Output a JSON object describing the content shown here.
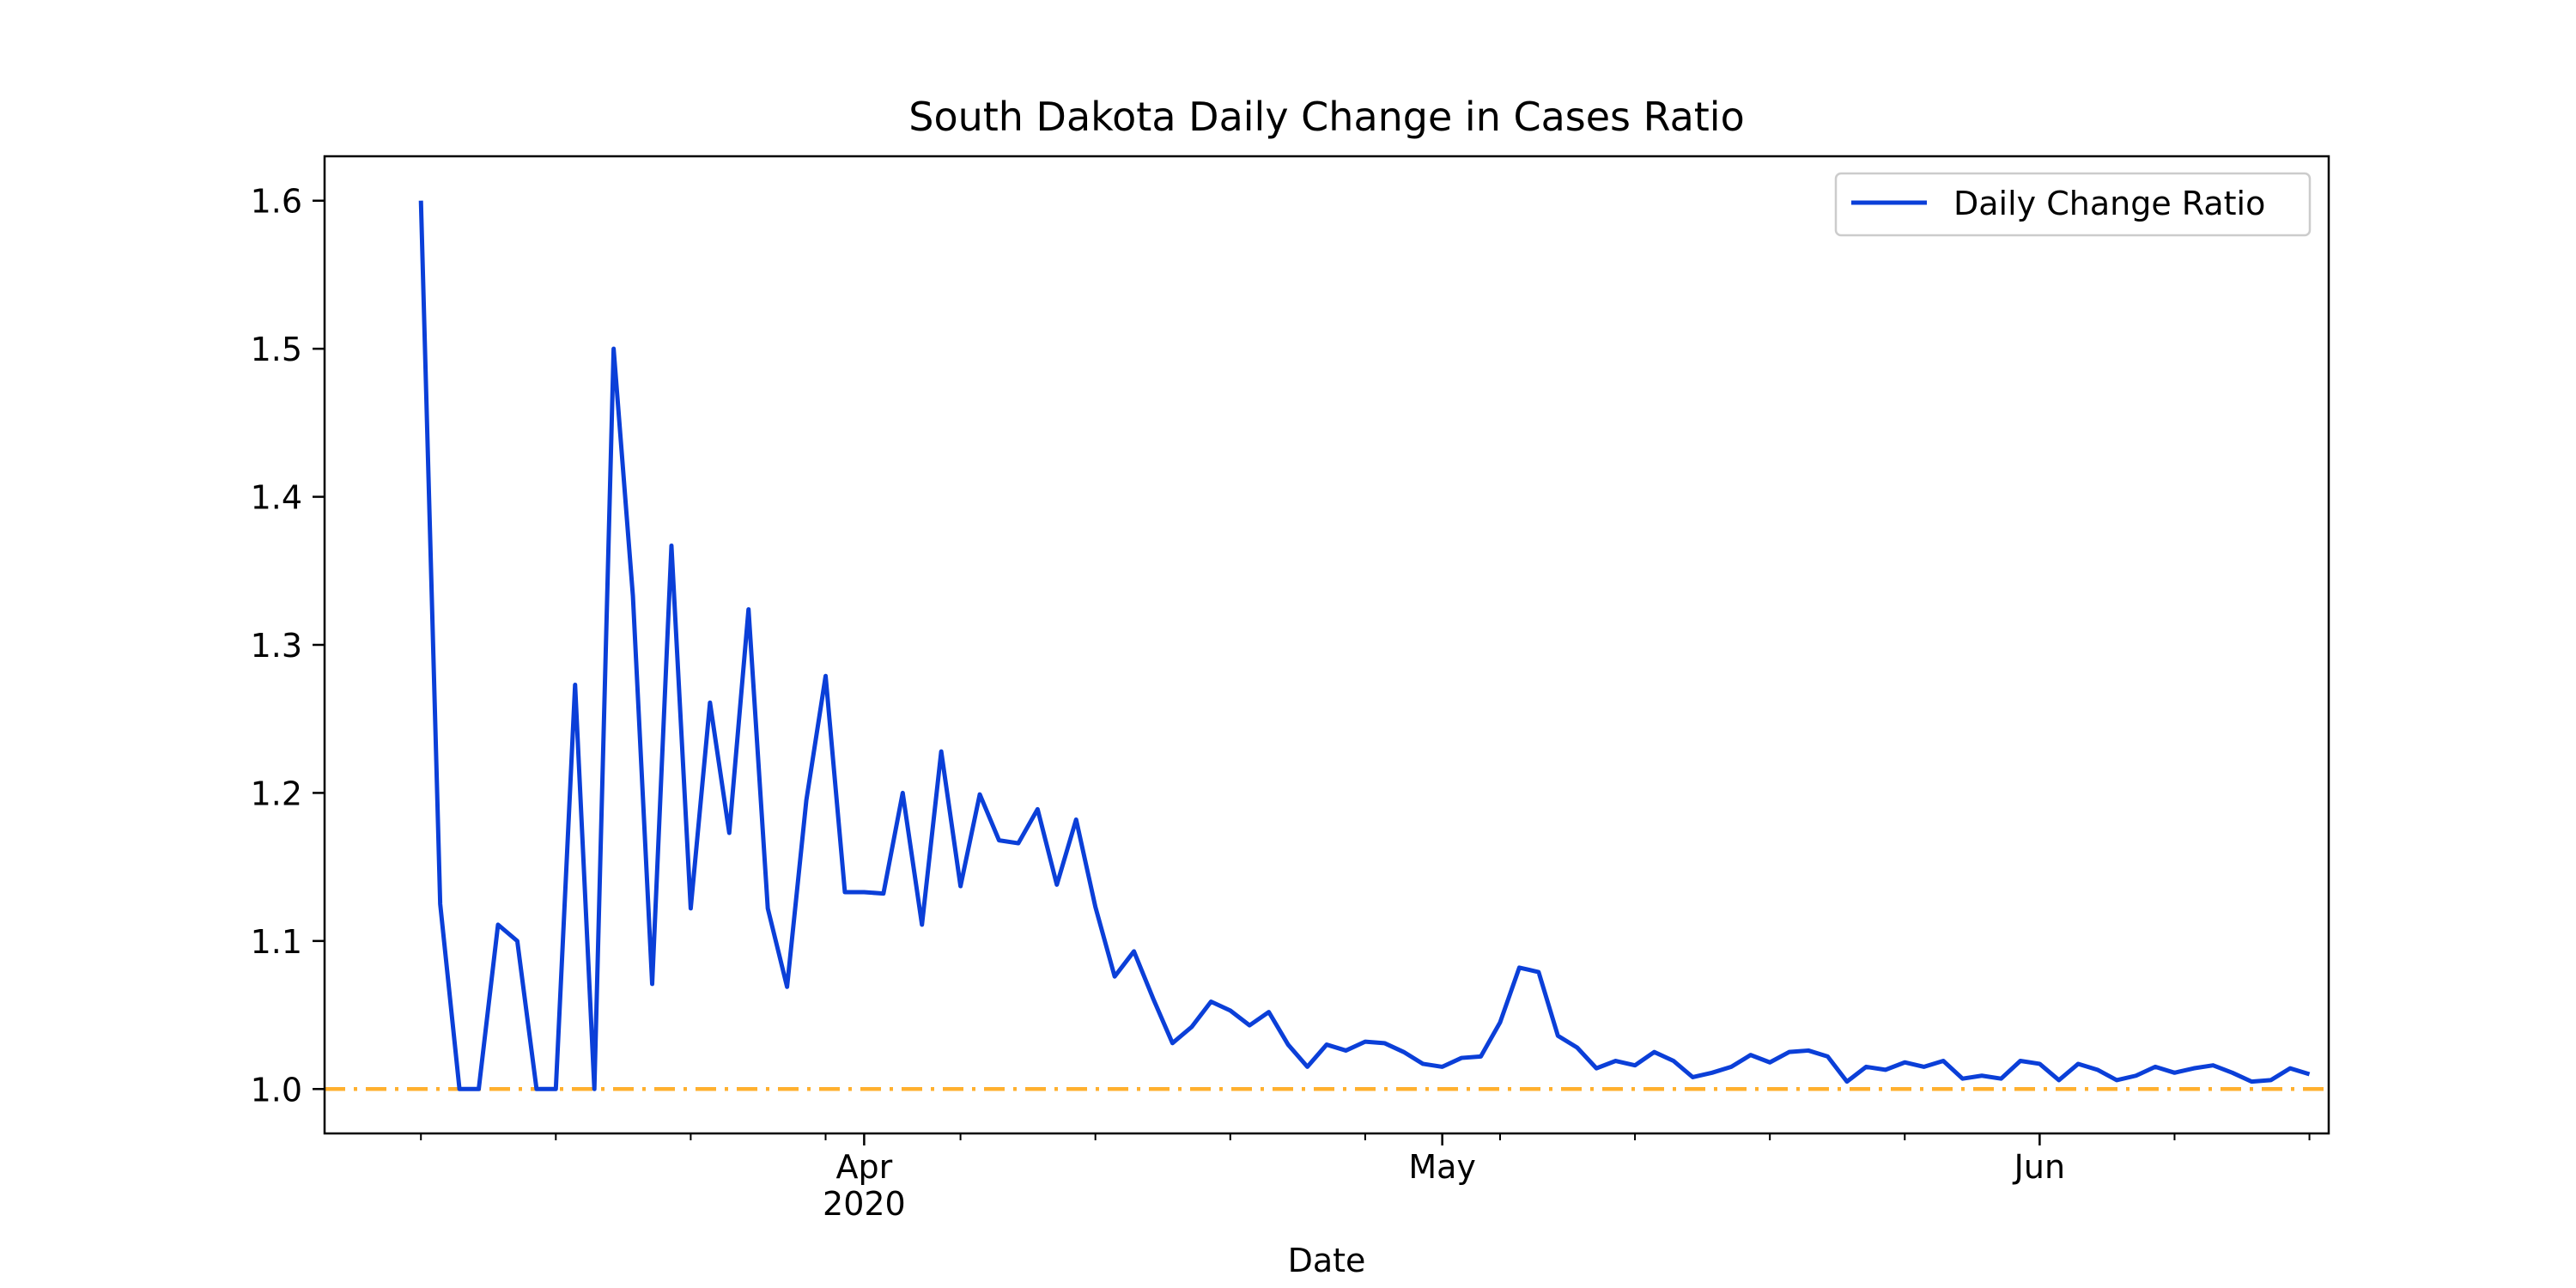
{
  "chart_data": {
    "type": "line",
    "title": "South Dakota Daily Change in Cases Ratio",
    "xlabel": "Date",
    "ylabel": "",
    "x_ticks_major": [
      {
        "date": "2020-04-01",
        "label": "Apr",
        "sublabel": "2020"
      },
      {
        "date": "2020-05-01",
        "label": "May",
        "sublabel": ""
      },
      {
        "date": "2020-06-01",
        "label": "Jun",
        "sublabel": ""
      }
    ],
    "y_ticks": [
      "1.0",
      "1.1",
      "1.2",
      "1.3",
      "1.4",
      "1.5",
      "1.6"
    ],
    "xlim": [
      "2020-03-04",
      "2020-06-16"
    ],
    "ylim": [
      0.97,
      1.63
    ],
    "grid": false,
    "legend_position": "top-right",
    "reference_line": {
      "y": 1.0,
      "color": "#ffb02e",
      "style": "dash-dot"
    },
    "series": [
      {
        "name": "Daily Change Ratio",
        "color": "#0b3fd8",
        "points": [
          [
            "2020-03-09",
            1.6
          ],
          [
            "2020-03-10",
            1.125
          ],
          [
            "2020-03-11",
            1.0
          ],
          [
            "2020-03-12",
            1.0
          ],
          [
            "2020-03-13",
            1.111
          ],
          [
            "2020-03-14",
            1.1
          ],
          [
            "2020-03-15",
            1.0
          ],
          [
            "2020-03-16",
            1.0
          ],
          [
            "2020-03-17",
            1.273
          ],
          [
            "2020-03-18",
            1.0
          ],
          [
            "2020-03-19",
            1.5
          ],
          [
            "2020-03-20",
            1.333
          ],
          [
            "2020-03-21",
            1.071
          ],
          [
            "2020-03-22",
            1.367
          ],
          [
            "2020-03-23",
            1.122
          ],
          [
            "2020-03-24",
            1.261
          ],
          [
            "2020-03-25",
            1.173
          ],
          [
            "2020-03-26",
            1.324
          ],
          [
            "2020-03-27",
            1.122
          ],
          [
            "2020-03-28",
            1.069
          ],
          [
            "2020-03-29",
            1.195
          ],
          [
            "2020-03-30",
            1.279
          ],
          [
            "2020-03-31",
            1.133
          ],
          [
            "2020-04-01",
            1.133
          ],
          [
            "2020-04-02",
            1.132
          ],
          [
            "2020-04-03",
            1.2
          ],
          [
            "2020-04-04",
            1.111
          ],
          [
            "2020-04-05",
            1.228
          ],
          [
            "2020-04-06",
            1.137
          ],
          [
            "2020-04-07",
            1.199
          ],
          [
            "2020-04-08",
            1.168
          ],
          [
            "2020-04-09",
            1.166
          ],
          [
            "2020-04-10",
            1.189
          ],
          [
            "2020-04-11",
            1.138
          ],
          [
            "2020-04-12",
            1.182
          ],
          [
            "2020-04-13",
            1.123
          ],
          [
            "2020-04-14",
            1.076
          ],
          [
            "2020-04-15",
            1.093
          ],
          [
            "2020-04-16",
            1.061
          ],
          [
            "2020-04-17",
            1.031
          ],
          [
            "2020-04-18",
            1.042
          ],
          [
            "2020-04-19",
            1.059
          ],
          [
            "2020-04-20",
            1.053
          ],
          [
            "2020-04-21",
            1.043
          ],
          [
            "2020-04-22",
            1.052
          ],
          [
            "2020-04-23",
            1.03
          ],
          [
            "2020-04-24",
            1.015
          ],
          [
            "2020-04-25",
            1.03
          ],
          [
            "2020-04-26",
            1.026
          ],
          [
            "2020-04-27",
            1.032
          ],
          [
            "2020-04-28",
            1.031
          ],
          [
            "2020-04-29",
            1.025
          ],
          [
            "2020-04-30",
            1.017
          ],
          [
            "2020-05-01",
            1.015
          ],
          [
            "2020-05-02",
            1.021
          ],
          [
            "2020-05-03",
            1.022
          ],
          [
            "2020-05-04",
            1.045
          ],
          [
            "2020-05-05",
            1.082
          ],
          [
            "2020-05-06",
            1.079
          ],
          [
            "2020-05-07",
            1.036
          ],
          [
            "2020-05-08",
            1.028
          ],
          [
            "2020-05-09",
            1.014
          ],
          [
            "2020-05-10",
            1.019
          ],
          [
            "2020-05-11",
            1.016
          ],
          [
            "2020-05-12",
            1.025
          ],
          [
            "2020-05-13",
            1.019
          ],
          [
            "2020-05-14",
            1.008
          ],
          [
            "2020-05-15",
            1.011
          ],
          [
            "2020-05-16",
            1.015
          ],
          [
            "2020-05-17",
            1.023
          ],
          [
            "2020-05-18",
            1.018
          ],
          [
            "2020-05-19",
            1.025
          ],
          [
            "2020-05-20",
            1.026
          ],
          [
            "2020-05-21",
            1.022
          ],
          [
            "2020-05-22",
            1.005
          ],
          [
            "2020-05-23",
            1.015
          ],
          [
            "2020-05-24",
            1.013
          ],
          [
            "2020-05-25",
            1.018
          ],
          [
            "2020-05-26",
            1.015
          ],
          [
            "2020-05-27",
            1.019
          ],
          [
            "2020-05-28",
            1.007
          ],
          [
            "2020-05-29",
            1.009
          ],
          [
            "2020-05-30",
            1.007
          ],
          [
            "2020-05-31",
            1.019
          ],
          [
            "2020-06-01",
            1.017
          ],
          [
            "2020-06-02",
            1.006
          ],
          [
            "2020-06-03",
            1.017
          ],
          [
            "2020-06-04",
            1.013
          ],
          [
            "2020-06-05",
            1.006
          ],
          [
            "2020-06-06",
            1.009
          ],
          [
            "2020-06-07",
            1.015
          ],
          [
            "2020-06-08",
            1.011
          ],
          [
            "2020-06-09",
            1.014
          ],
          [
            "2020-06-10",
            1.016
          ],
          [
            "2020-06-11",
            1.011
          ],
          [
            "2020-06-12",
            1.005
          ],
          [
            "2020-06-13",
            1.006
          ],
          [
            "2020-06-14",
            1.014
          ],
          [
            "2020-06-15",
            1.01
          ]
        ]
      }
    ]
  }
}
